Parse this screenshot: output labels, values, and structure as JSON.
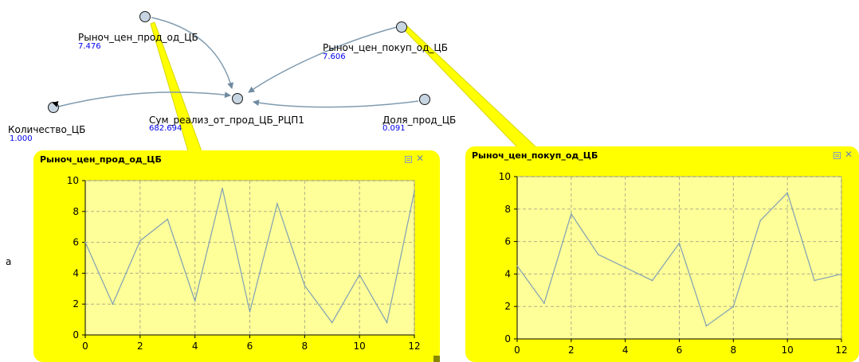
{
  "model": {
    "nodes": [
      {
        "id": "market_sell",
        "label": "Рыноч_цен_прод_од_ЦБ",
        "value": "7.476"
      },
      {
        "id": "market_buy",
        "label": "Рыноч_цен_покуп_од_ЦБ",
        "value": "7.606"
      },
      {
        "id": "quantity",
        "label": "Количество_ЦБ",
        "value": "1.000"
      },
      {
        "id": "sum",
        "label": "Сум_реализ_от_прод_ЦБ_РЦП1",
        "value": "682.694"
      },
      {
        "id": "share",
        "label": "Доля_прод_ЦБ",
        "value": "0.091"
      }
    ],
    "stray_text": "а"
  },
  "panels": [
    {
      "title": "Рыноч_цен_прод_од_ЦБ",
      "chart_data": {
        "type": "line",
        "x": [
          0,
          1,
          2,
          3,
          4,
          5,
          6,
          7,
          8,
          9,
          10,
          11,
          12
        ],
        "y": [
          6.0,
          2.0,
          6.1,
          7.5,
          2.2,
          9.5,
          1.5,
          8.5,
          3.2,
          0.8,
          3.9,
          0.8,
          9.3
        ],
        "xticks": [
          "0",
          "2",
          "4",
          "6",
          "8",
          "10",
          "12"
        ],
        "yticks": [
          "0",
          "2",
          "4",
          "6",
          "8",
          "10"
        ],
        "xlim": [
          0,
          12
        ],
        "ylim": [
          0,
          10
        ],
        "grid": true,
        "line_color": "#7f9fb5",
        "plot_bg": "#ffff99"
      }
    },
    {
      "title": "Рыноч_цен_покуп_од_ЦБ",
      "chart_data": {
        "type": "line",
        "x": [
          0,
          1,
          2,
          3,
          4,
          5,
          6,
          7,
          8,
          9,
          10,
          11,
          12
        ],
        "y": [
          4.5,
          2.2,
          7.7,
          5.2,
          4.4,
          3.6,
          5.9,
          0.8,
          2.0,
          7.3,
          9.0,
          3.6,
          4.0
        ],
        "xticks": [
          "0",
          "2",
          "4",
          "6",
          "8",
          "10",
          "12"
        ],
        "yticks": [
          "0",
          "2",
          "4",
          "6",
          "8",
          "10"
        ],
        "xlim": [
          0,
          12
        ],
        "ylim": [
          0,
          10
        ],
        "grid": true,
        "line_color": "#7f9fb5",
        "plot_bg": "#ffff99"
      }
    }
  ]
}
